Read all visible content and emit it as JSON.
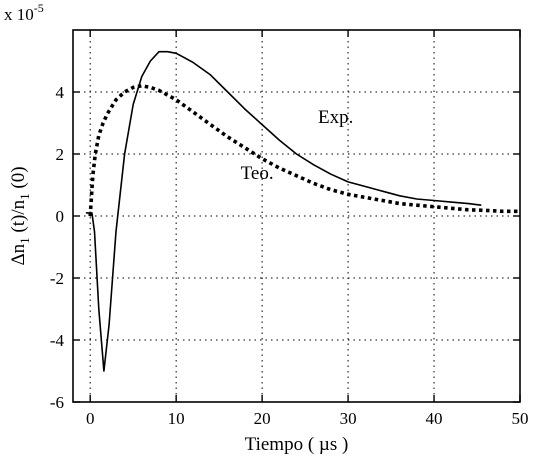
{
  "chart_data": {
    "type": "line",
    "xlabel": "Tiempo ( µs )",
    "ylabel_parts": [
      "Δn",
      "1",
      " (t)/n",
      "1",
      " (0)"
    ],
    "multiplier": {
      "base": "x 10",
      "exp": "-5"
    },
    "xlim": [
      -2,
      50
    ],
    "ylim": [
      -6,
      6
    ],
    "xticks": [
      0,
      10,
      20,
      30,
      40,
      50
    ],
    "yticks": [
      -6,
      -4,
      -2,
      0,
      2,
      4
    ],
    "grid": true,
    "grid_style": "dotted",
    "series": [
      {
        "name": "Exp.",
        "style": "solid",
        "color": "#000000",
        "x": [
          -0.5,
          0.2,
          0.5,
          1.0,
          1.6,
          2.2,
          3.0,
          4.0,
          5.0,
          6.0,
          7.0,
          8.0,
          9.0,
          10.0,
          11.0,
          12.0,
          14.0,
          16.0,
          18.0,
          20.0,
          22.0,
          24.0,
          26.0,
          28.0,
          30.0,
          32.0,
          34.0,
          36.0,
          38.0,
          40.0,
          42.0,
          44.0,
          45.5
        ],
        "y": [
          0.1,
          0.1,
          -0.5,
          -3.0,
          -5.0,
          -3.5,
          -0.5,
          2.0,
          3.6,
          4.5,
          5.0,
          5.3,
          5.3,
          5.25,
          5.1,
          4.95,
          4.55,
          4.0,
          3.45,
          2.95,
          2.45,
          2.0,
          1.65,
          1.35,
          1.1,
          0.95,
          0.8,
          0.65,
          0.55,
          0.5,
          0.45,
          0.4,
          0.35
        ]
      },
      {
        "name": "Teo.",
        "style": "dotted",
        "color": "#000000",
        "x": [
          0.0,
          0.3,
          0.6,
          1.0,
          1.5,
          2.0,
          3.0,
          4.0,
          5.0,
          6.0,
          7.0,
          8.0,
          9.0,
          10.0,
          12.0,
          14.0,
          16.0,
          18.0,
          20.0,
          22.0,
          24.0,
          26.0,
          28.0,
          30.0,
          32.0,
          34.0,
          36.0,
          38.0,
          40.0,
          42.0,
          44.0,
          46.0,
          48.0,
          50.0
        ],
        "y": [
          0.0,
          1.3,
          2.0,
          2.6,
          3.0,
          3.3,
          3.75,
          4.0,
          4.15,
          4.2,
          4.15,
          4.05,
          3.9,
          3.75,
          3.35,
          2.95,
          2.55,
          2.2,
          1.85,
          1.55,
          1.3,
          1.05,
          0.85,
          0.7,
          0.6,
          0.5,
          0.4,
          0.35,
          0.3,
          0.25,
          0.2,
          0.18,
          0.15,
          0.15
        ]
      }
    ],
    "annotations": [
      {
        "text": "Exp.",
        "x": 26.5,
        "y": 3.0
      },
      {
        "text": "Teo.",
        "x": 17.5,
        "y": 1.2
      }
    ]
  }
}
